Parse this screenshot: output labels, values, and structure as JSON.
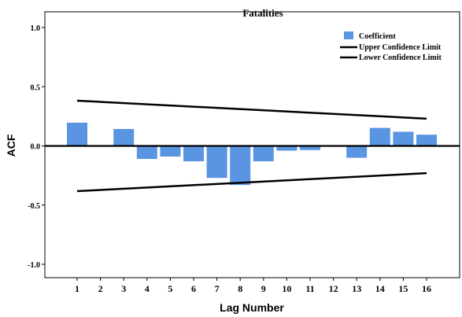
{
  "chart_data": {
    "type": "bar",
    "title": "Fatalities",
    "xlabel": "Lag Number",
    "ylabel": "ACF",
    "ylim": [
      -1.0,
      1.0
    ],
    "yticks": [
      "1.0",
      "0.5",
      "0.0",
      "-0.5",
      "-1.0"
    ],
    "categories": [
      "1",
      "2",
      "3",
      "4",
      "5",
      "6",
      "7",
      "8",
      "9",
      "10",
      "11",
      "12",
      "13",
      "14",
      "15",
      "16"
    ],
    "series": [
      {
        "name": "Coefficient",
        "color": "#5a95e2",
        "values": [
          0.196,
          0.0,
          0.143,
          -0.11,
          -0.09,
          -0.13,
          -0.27,
          -0.33,
          -0.13,
          -0.04,
          -0.035,
          -0.005,
          -0.1,
          0.152,
          0.12,
          0.095
        ]
      }
    ],
    "upper_limit": {
      "name": "Upper Confidence Limit",
      "start": 0.382,
      "end": 0.23
    },
    "lower_limit": {
      "name": "Lower Confidence Limit",
      "start": -0.382,
      "end": -0.23
    },
    "legend_position": "top-right",
    "grid": false
  }
}
